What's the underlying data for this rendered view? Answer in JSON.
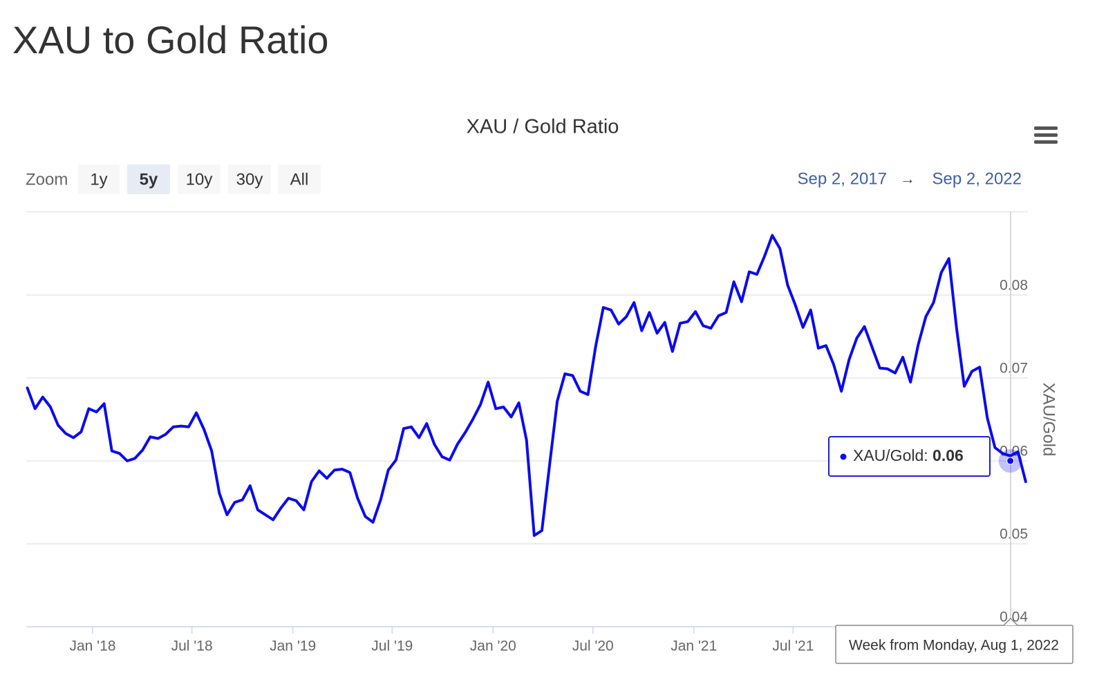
{
  "page_title": "XAU to Gold Ratio",
  "chart_data": {
    "type": "line",
    "title": "XAU / Gold Ratio",
    "zoom_label": "Zoom",
    "zoom_buttons": [
      "1y",
      "5y",
      "10y",
      "30y",
      "All"
    ],
    "selected_zoom": "5y",
    "range_from": "Sep 2, 2017",
    "range_separator": "→",
    "range_to": "Sep 2, 2022",
    "y_label": "XAU/Gold",
    "xlim": [
      "2017-09-02",
      "2022-09-02"
    ],
    "xticks": [
      {
        "value": "2018-01-01",
        "label": "Jan '18"
      },
      {
        "value": "2018-07-01",
        "label": "Jul '18"
      },
      {
        "value": "2019-01-01",
        "label": "Jan '19"
      },
      {
        "value": "2019-07-01",
        "label": "Jul '19"
      },
      {
        "value": "2020-01-01",
        "label": "Jan '20"
      },
      {
        "value": "2020-07-01",
        "label": "Jul '20"
      },
      {
        "value": "2021-01-01",
        "label": "Jan '21"
      },
      {
        "value": "2021-07-01",
        "label": "Jul '21"
      }
    ],
    "ylim": [
      0.04,
      0.09
    ],
    "yticks": [
      0.04,
      0.05,
      0.06,
      0.07,
      0.08
    ],
    "grid": true,
    "x": [
      "2017-09-04",
      "2017-09-18",
      "2017-10-02",
      "2017-10-16",
      "2017-10-30",
      "2017-11-13",
      "2017-11-27",
      "2017-12-11",
      "2017-12-25",
      "2018-01-08",
      "2018-01-22",
      "2018-02-05",
      "2018-02-19",
      "2018-03-05",
      "2018-03-19",
      "2018-04-02",
      "2018-04-16",
      "2018-04-30",
      "2018-05-14",
      "2018-05-28",
      "2018-06-11",
      "2018-06-25",
      "2018-07-09",
      "2018-07-23",
      "2018-08-06",
      "2018-08-20",
      "2018-09-03",
      "2018-09-17",
      "2018-10-01",
      "2018-10-15",
      "2018-10-29",
      "2018-11-12",
      "2018-11-26",
      "2018-12-10",
      "2018-12-24",
      "2019-01-07",
      "2019-01-21",
      "2019-02-04",
      "2019-02-18",
      "2019-03-04",
      "2019-03-18",
      "2019-04-01",
      "2019-04-15",
      "2019-04-29",
      "2019-05-13",
      "2019-05-27",
      "2019-06-10",
      "2019-06-24",
      "2019-07-08",
      "2019-07-22",
      "2019-08-05",
      "2019-08-19",
      "2019-09-02",
      "2019-09-16",
      "2019-09-30",
      "2019-10-14",
      "2019-10-28",
      "2019-11-11",
      "2019-11-25",
      "2019-12-09",
      "2019-12-23",
      "2020-01-06",
      "2020-01-20",
      "2020-02-03",
      "2020-02-17",
      "2020-03-02",
      "2020-03-16",
      "2020-03-30",
      "2020-04-13",
      "2020-04-27",
      "2020-05-11",
      "2020-05-25",
      "2020-06-08",
      "2020-06-22",
      "2020-07-06",
      "2020-07-20",
      "2020-08-03",
      "2020-08-17",
      "2020-08-31",
      "2020-09-14",
      "2020-09-28",
      "2020-10-12",
      "2020-10-26",
      "2020-11-09",
      "2020-11-23",
      "2020-12-07",
      "2020-12-21",
      "2021-01-04",
      "2021-01-18",
      "2021-02-01",
      "2021-02-15",
      "2021-03-01",
      "2021-03-15",
      "2021-03-29",
      "2021-04-12",
      "2021-04-26",
      "2021-05-10",
      "2021-05-24",
      "2021-06-07",
      "2021-06-21",
      "2021-07-05",
      "2021-07-19",
      "2021-08-02",
      "2021-08-16",
      "2021-08-30",
      "2021-09-13",
      "2021-09-27",
      "2021-10-11",
      "2021-10-25",
      "2021-11-08",
      "2021-11-22",
      "2021-12-06",
      "2021-12-20",
      "2022-01-03",
      "2022-01-17",
      "2022-01-31",
      "2022-02-14",
      "2022-02-28",
      "2022-03-14",
      "2022-03-28",
      "2022-04-11",
      "2022-04-25",
      "2022-05-09",
      "2022-05-23",
      "2022-06-06",
      "2022-06-20",
      "2022-07-04",
      "2022-07-18",
      "2022-08-01",
      "2022-08-15",
      "2022-08-29"
    ],
    "series": [
      {
        "name": "XAU/Gold",
        "color": "#0b0bef",
        "values": [
          0.0688,
          0.0663,
          0.0677,
          0.0665,
          0.0643,
          0.0633,
          0.0628,
          0.0635,
          0.0663,
          0.0659,
          0.0669,
          0.0612,
          0.0609,
          0.06,
          0.0603,
          0.0613,
          0.0629,
          0.0627,
          0.0632,
          0.0641,
          0.0642,
          0.0641,
          0.0658,
          0.0638,
          0.0612,
          0.0561,
          0.0535,
          0.055,
          0.0553,
          0.057,
          0.0541,
          0.0535,
          0.0529,
          0.0543,
          0.0555,
          0.0552,
          0.0541,
          0.0575,
          0.0588,
          0.0579,
          0.0589,
          0.059,
          0.0586,
          0.0555,
          0.0533,
          0.0526,
          0.0553,
          0.0589,
          0.0601,
          0.0639,
          0.0641,
          0.0628,
          0.0645,
          0.062,
          0.0605,
          0.0601,
          0.062,
          0.0634,
          0.065,
          0.0668,
          0.0695,
          0.0663,
          0.0665,
          0.0653,
          0.067,
          0.0625,
          0.051,
          0.0516,
          0.0595,
          0.0672,
          0.0705,
          0.0703,
          0.0684,
          0.068,
          0.0738,
          0.0785,
          0.0782,
          0.0765,
          0.0774,
          0.0791,
          0.0757,
          0.0779,
          0.0754,
          0.0767,
          0.0732,
          0.0766,
          0.0768,
          0.078,
          0.0763,
          0.076,
          0.0775,
          0.0779,
          0.0816,
          0.0792,
          0.0828,
          0.0825,
          0.0847,
          0.0872,
          0.0856,
          0.0812,
          0.0788,
          0.0761,
          0.0782,
          0.0736,
          0.0739,
          0.0716,
          0.0684,
          0.0722,
          0.0748,
          0.0762,
          0.0737,
          0.0712,
          0.0711,
          0.0706,
          0.0725,
          0.0695,
          0.074,
          0.0774,
          0.0791,
          0.0827,
          0.0844,
          0.076,
          0.069,
          0.0708,
          0.0713,
          0.0652,
          0.0616,
          0.0609,
          0.0606,
          0.0611,
          0.0575
        ]
      }
    ],
    "tooltip": {
      "x": "2022-08-01",
      "y": 0.06,
      "header": "Week from Monday, Aug 1, 2022",
      "label": "XAU/Gold:",
      "value_label": "0.06"
    }
  }
}
